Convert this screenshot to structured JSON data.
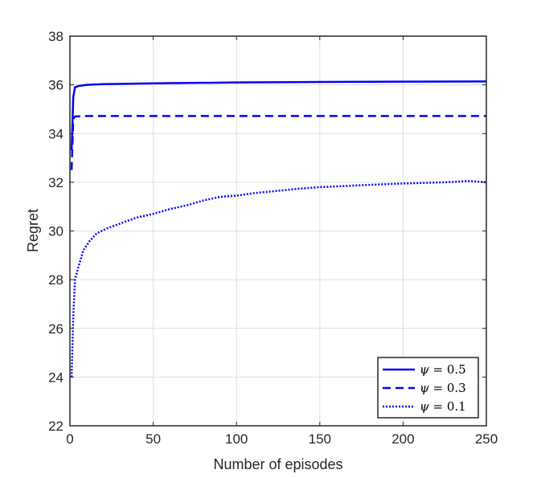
{
  "chart_data": {
    "type": "line",
    "title": "",
    "xlabel": "Number of episodes",
    "ylabel": "Regret",
    "xlim": [
      0,
      250
    ],
    "ylim": [
      22,
      38
    ],
    "xticks": [
      0,
      50,
      100,
      150,
      200,
      250
    ],
    "yticks": [
      22,
      24,
      26,
      28,
      30,
      32,
      34,
      36,
      38
    ],
    "xtick_labels": [
      "0",
      "50",
      "100",
      "150",
      "200",
      "250"
    ],
    "ytick_labels": [
      "22",
      "24",
      "26",
      "28",
      "30",
      "32",
      "34",
      "36",
      "38"
    ],
    "grid": true,
    "legend_position": "bottom-right",
    "series": [
      {
        "name": "ψ = 0.5",
        "symbol": "ψ",
        "value_text": " = 0.5",
        "style": "solid",
        "color": "#0000ff",
        "points": [
          [
            1,
            33.3
          ],
          [
            2,
            35.5
          ],
          [
            3,
            35.9
          ],
          [
            5,
            35.95
          ],
          [
            10,
            36.0
          ],
          [
            20,
            36.03
          ],
          [
            50,
            36.06
          ],
          [
            100,
            36.1
          ],
          [
            150,
            36.12
          ],
          [
            200,
            36.13
          ],
          [
            250,
            36.14
          ]
        ]
      },
      {
        "name": "ψ = 0.3",
        "symbol": "ψ",
        "value_text": " = 0.3",
        "style": "dashed",
        "color": "#0000ff",
        "points": [
          [
            1,
            32.5
          ],
          [
            2,
            34.6
          ],
          [
            3,
            34.7
          ],
          [
            10,
            34.72
          ],
          [
            50,
            34.72
          ],
          [
            100,
            34.72
          ],
          [
            150,
            34.72
          ],
          [
            200,
            34.72
          ],
          [
            250,
            34.72
          ]
        ]
      },
      {
        "name": "ψ = 0.1",
        "symbol": "ψ",
        "value_text": " = 0.1",
        "style": "dotted",
        "color": "#0000ff",
        "points": [
          [
            1,
            24.0
          ],
          [
            2,
            26.5
          ],
          [
            3,
            28.0
          ],
          [
            5,
            28.5
          ],
          [
            8,
            29.2
          ],
          [
            12,
            29.6
          ],
          [
            16,
            29.9
          ],
          [
            22,
            30.1
          ],
          [
            30,
            30.3
          ],
          [
            40,
            30.55
          ],
          [
            50,
            30.7
          ],
          [
            60,
            30.9
          ],
          [
            70,
            31.05
          ],
          [
            80,
            31.25
          ],
          [
            90,
            31.4
          ],
          [
            100,
            31.45
          ],
          [
            110,
            31.55
          ],
          [
            125,
            31.65
          ],
          [
            140,
            31.75
          ],
          [
            150,
            31.8
          ],
          [
            175,
            31.88
          ],
          [
            200,
            31.95
          ],
          [
            225,
            32.0
          ],
          [
            240,
            32.05
          ],
          [
            250,
            32.0
          ]
        ]
      }
    ]
  }
}
